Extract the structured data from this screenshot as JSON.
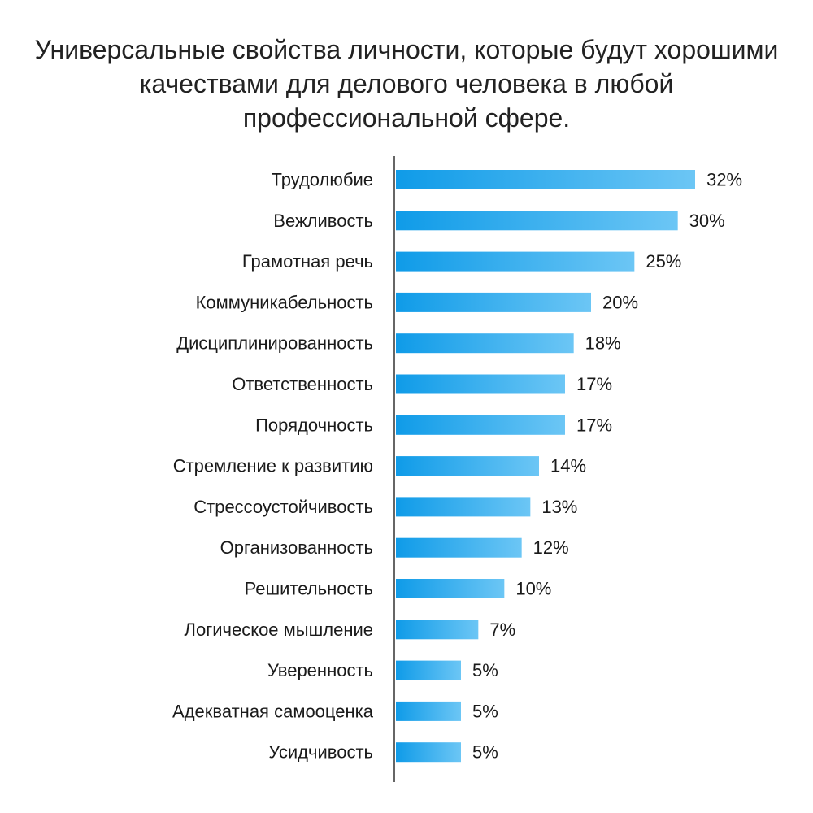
{
  "chart_data": {
    "type": "bar",
    "orientation": "horizontal",
    "title_lines": [
      "Универсальные свойства личности, которые будут хорошими",
      "качествами для делового человека в любой",
      "профессиональной сфере."
    ],
    "categories": [
      "Трудолюбие",
      "Вежливость",
      "Грамотная речь",
      "Коммуникабельность",
      "Дисциплинированность",
      "Ответственность",
      "Порядочность",
      "Стремление к развитию",
      "Стрессоустойчивость",
      "Организованность",
      "Решительность",
      "Логическое мышление",
      "Уверенность",
      "Адекватная самооценка",
      "Усидчивость"
    ],
    "values": [
      32,
      30,
      25,
      20,
      18,
      17,
      17,
      14,
      13,
      12,
      10,
      7,
      5,
      5,
      5
    ],
    "labels": [
      "32%",
      "30%",
      "25%",
      "20%",
      "18%",
      "17%",
      "17%",
      "14%",
      "13%",
      "12%",
      "10%",
      "7%",
      "5%",
      "5%",
      "5%"
    ],
    "unit": "%",
    "xlim": [
      -2.5,
      32
    ],
    "grid": false,
    "legend": "none",
    "colors": {
      "bar_start": "#0f9be8",
      "bar_end": "#6cc6f5",
      "axis": "#333333",
      "text": "#1a1a1a"
    }
  }
}
